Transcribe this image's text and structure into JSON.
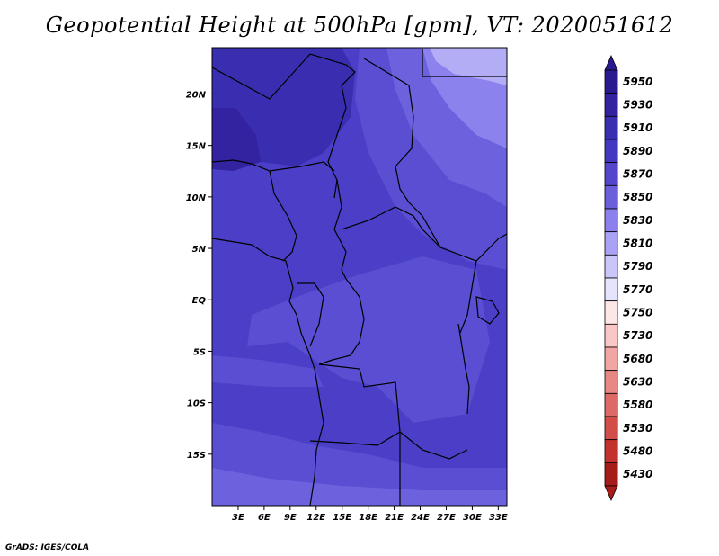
{
  "title": "Geopotential Height at 500hPa [gpm], VT: 2020051612",
  "credit": "GrADS: IGES/COLA",
  "map": {
    "lon_range": [
      0,
      34
    ],
    "lat_range": [
      -20,
      24.5
    ],
    "lon_ticks": [
      {
        "value": 3,
        "label": "3E"
      },
      {
        "value": 6,
        "label": "6E"
      },
      {
        "value": 9,
        "label": "9E"
      },
      {
        "value": 12,
        "label": "12E"
      },
      {
        "value": 15,
        "label": "15E"
      },
      {
        "value": 18,
        "label": "18E"
      },
      {
        "value": 21,
        "label": "21E"
      },
      {
        "value": 24,
        "label": "24E"
      },
      {
        "value": 27,
        "label": "27E"
      },
      {
        "value": 30,
        "label": "30E"
      },
      {
        "value": 33,
        "label": "33E"
      }
    ],
    "lat_ticks": [
      {
        "value": 20,
        "label": "20N"
      },
      {
        "value": 15,
        "label": "15N"
      },
      {
        "value": 10,
        "label": "10N"
      },
      {
        "value": 5,
        "label": "5N"
      },
      {
        "value": 0,
        "label": "EQ"
      },
      {
        "value": -5,
        "label": "5S"
      },
      {
        "value": -10,
        "label": "10S"
      },
      {
        "value": -15,
        "label": "15S"
      }
    ]
  },
  "colorbar": {
    "levels": [
      {
        "label": "5950",
        "color": "#2a1a8f"
      },
      {
        "label": "5930",
        "color": "#3323a0"
      },
      {
        "label": "5910",
        "color": "#3a2fb0"
      },
      {
        "label": "5890",
        "color": "#4438c2"
      },
      {
        "label": "5870",
        "color": "#5547cc"
      },
      {
        "label": "5850",
        "color": "#6b5fdc"
      },
      {
        "label": "5830",
        "color": "#8b80ee"
      },
      {
        "label": "5810",
        "color": "#aaa2f4"
      },
      {
        "label": "5790",
        "color": "#cac6fa"
      },
      {
        "label": "5770",
        "color": "#e6e4fd"
      },
      {
        "label": "5750",
        "color": "#fde6e6"
      },
      {
        "label": "5730",
        "color": "#f9c8c6"
      },
      {
        "label": "5680",
        "color": "#f2a6a4"
      },
      {
        "label": "5630",
        "color": "#e88784"
      },
      {
        "label": "5580",
        "color": "#de6a66"
      },
      {
        "label": "5530",
        "color": "#d44e49"
      },
      {
        "label": "5480",
        "color": "#c4322e"
      },
      {
        "label": "5430",
        "color": "#a61c19"
      }
    ]
  },
  "colors": {
    "field_base": "#4a3fc6",
    "field_dark": "#3a2eb0",
    "field_darker": "#3323a0",
    "field_mid": "#5a4fd2",
    "field_light": "#6d62de",
    "field_lighter": "#8c82ee",
    "field_lightest": "#b3adf6",
    "boundary": "#000000"
  }
}
